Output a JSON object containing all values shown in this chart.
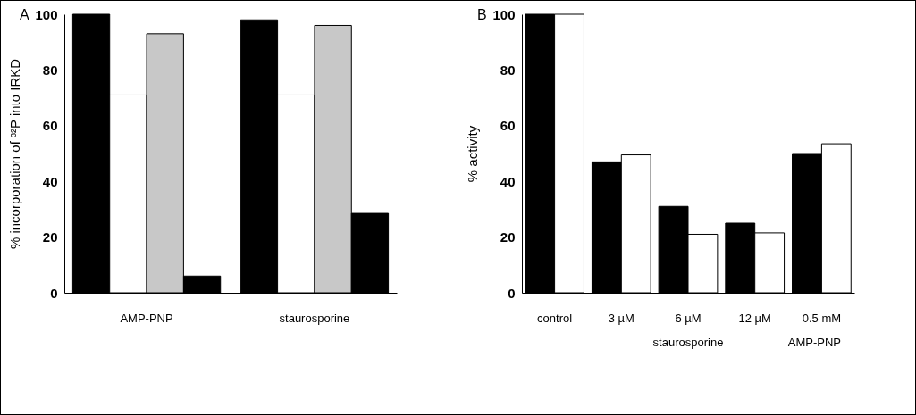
{
  "chart_data": [
    {
      "type": "bar",
      "title": "A",
      "ylabel": "% incorporation of ³²P into IRKD",
      "categories": [
        "AMP-PNP",
        "staurosporine"
      ],
      "ylim": [
        0,
        100
      ],
      "yticks": [
        0,
        20,
        40,
        60,
        80,
        100
      ],
      "series": [
        {
          "color": "#000000",
          "values": [
            100,
            98
          ]
        },
        {
          "color": "#ffffff",
          "values": [
            71,
            71
          ]
        },
        {
          "color": "#c8c8c8",
          "values": [
            93,
            96
          ]
        },
        {
          "color": "#000000",
          "values": [
            6,
            28.5
          ]
        }
      ]
    },
    {
      "type": "bar",
      "title": "B",
      "ylabel": "% activity",
      "categories": [
        "control",
        "3 µM",
        "6 µM",
        "12 µM",
        "0.5 mM"
      ],
      "ylim": [
        0,
        100
      ],
      "yticks": [
        0,
        20,
        40,
        60,
        80,
        100
      ],
      "series": [
        {
          "color": "#000000",
          "values": [
            100,
            47,
            31,
            25,
            50
          ]
        },
        {
          "color": "#ffffff",
          "values": [
            100,
            49.5,
            21,
            21.5,
            53.5
          ]
        }
      ],
      "annotations": [
        "staurosporine",
        "AMP-PNP"
      ]
    }
  ]
}
